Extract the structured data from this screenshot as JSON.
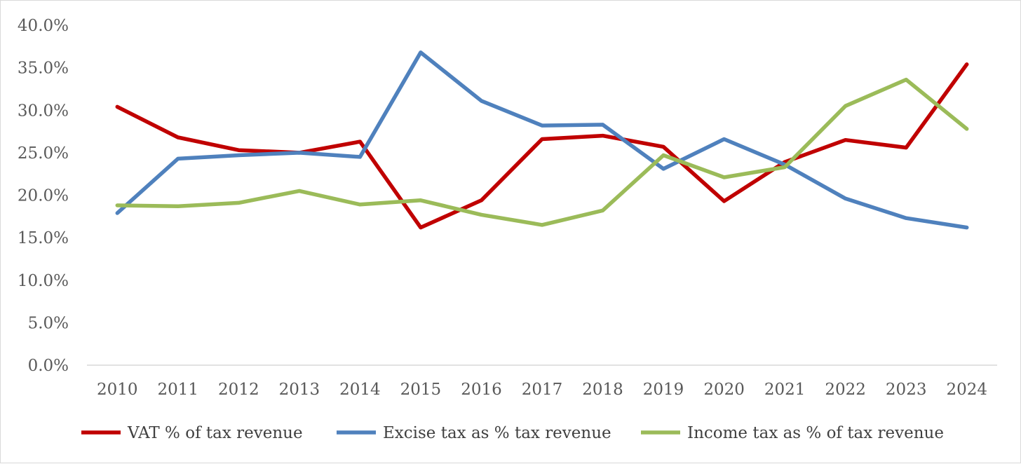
{
  "chart_data": {
    "type": "line",
    "title": "",
    "xlabel": "",
    "ylabel": "",
    "categories": [
      "2010",
      "2011",
      "2012",
      "2013",
      "2014",
      "2015",
      "2016",
      "2017",
      "2018",
      "2019",
      "2020",
      "2021",
      "2022",
      "2023",
      "2024"
    ],
    "ylim": [
      0,
      40
    ],
    "yticks": [
      0,
      5,
      10,
      15,
      20,
      25,
      30,
      35,
      40
    ],
    "ytick_labels": [
      "0.0%",
      "5.0%",
      "10.0%",
      "15.0%",
      "20.0%",
      "25.0%",
      "30.0%",
      "35.0%",
      "40.0%"
    ],
    "grid": false,
    "legend_position": "bottom",
    "series": [
      {
        "name": "VAT % of tax revenue",
        "color": "#c00000",
        "values": [
          30.4,
          26.8,
          25.3,
          25.0,
          26.3,
          16.2,
          19.4,
          26.6,
          27.0,
          25.7,
          19.3,
          23.9,
          26.5,
          25.6,
          35.4
        ]
      },
      {
        "name": "Excise tax as % tax revenue",
        "color": "#4f81bd",
        "values": [
          17.9,
          24.3,
          24.7,
          25.0,
          24.5,
          36.8,
          31.1,
          28.2,
          28.3,
          23.1,
          26.6,
          23.6,
          19.6,
          17.3,
          16.2
        ]
      },
      {
        "name": "Income tax as % of tax revenue",
        "color": "#9bbb59",
        "values": [
          18.8,
          18.7,
          19.1,
          20.5,
          18.9,
          19.4,
          17.7,
          16.5,
          18.2,
          24.7,
          22.1,
          23.3,
          30.5,
          33.6,
          27.8
        ]
      }
    ]
  }
}
